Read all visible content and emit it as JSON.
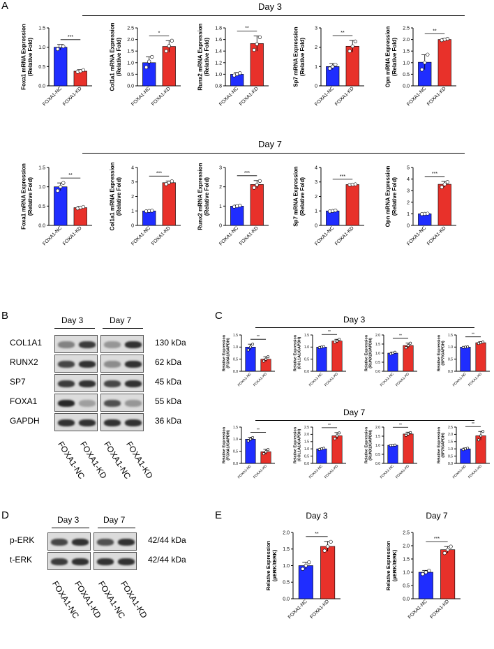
{
  "panel_letters": {
    "a": "A",
    "b": "B",
    "c": "C",
    "d": "D",
    "e": "E"
  },
  "colors": {
    "nc": "#1f2dff",
    "kd": "#e8312a",
    "axis": "#000000",
    "blot_bg": "#dcdcdc",
    "band": "#1e1e1e"
  },
  "groups": [
    "FOXA1-NC",
    "FOXA1-KD"
  ],
  "panel_a": {
    "day3_title": "Day 3",
    "day7_title": "Day 7",
    "relative_fold": "(Relative Fold)"
  },
  "panel_b": {
    "day3": "Day 3",
    "day7": "Day 7",
    "rows": [
      {
        "protein": "COL1A1",
        "size": "130 kDa"
      },
      {
        "protein": "RUNX2",
        "size": "62 kDa"
      },
      {
        "protein": "SP7",
        "size": "45 kDa"
      },
      {
        "protein": "FOXA1",
        "size": "55 kDa"
      },
      {
        "protein": "GAPDH",
        "size": "36 kDa"
      }
    ],
    "lanes": [
      "FOXA1-NC",
      "FOXA1-KD",
      "FOXA1-NC",
      "FOXA1-KD"
    ]
  },
  "panel_c": {
    "day3_title": "Day 3",
    "day7_title": "Day 7",
    "ylabel_top": "Relative Expression"
  },
  "panel_d": {
    "day3": "Day 3",
    "day7": "Day 7",
    "rows": [
      {
        "protein": "p-ERK",
        "size": "42/44 kDa"
      },
      {
        "protein": "t-ERK",
        "size": "42/44 kDa"
      }
    ],
    "lanes": [
      "FOXA1-NC",
      "FOXA1-KD",
      "FOXA1-NC",
      "FOXA1-KD"
    ]
  },
  "chart_data": [
    {
      "id": "a_d3_foxa1",
      "type": "bar",
      "panel": "A",
      "day": "Day 3",
      "ylabel": "Foxa1 mRNA Expression",
      "ylabel2": "(Relative Fold)",
      "categories": [
        "FOXA1-NC",
        "FOXA1-KD"
      ],
      "values": [
        1.0,
        0.38
      ],
      "errors": [
        0.07,
        0.04
      ],
      "points": [
        [
          0.95,
          1.03,
          1.02
        ],
        [
          0.36,
          0.38,
          0.41
        ]
      ],
      "ylim": [
        0,
        1.5
      ],
      "yticks": [
        0.0,
        0.5,
        1.0,
        1.5
      ],
      "ytick_labels": [
        "0.0",
        "0.5",
        "1.0",
        "1.5"
      ],
      "significance": "***"
    },
    {
      "id": "a_d3_col1a1",
      "type": "bar",
      "panel": "A",
      "day": "Day 3",
      "ylabel": "Col1a1 mRNA Expression",
      "ylabel2": "(Relative Fold)",
      "categories": [
        "FOXA1-NC",
        "FOXA1-KD"
      ],
      "values": [
        1.0,
        1.7
      ],
      "errors": [
        0.25,
        0.25
      ],
      "points": [
        [
          0.8,
          1.05,
          1.25
        ],
        [
          1.5,
          1.72,
          1.95
        ]
      ],
      "ylim": [
        0,
        2.5
      ],
      "yticks": [
        0.0,
        0.5,
        1.0,
        1.5,
        2.0,
        2.5
      ],
      "ytick_labels": [
        "0.0",
        "0.5",
        "1.0",
        "1.5",
        "2.0",
        "2.5"
      ],
      "significance": "*"
    },
    {
      "id": "a_d3_runx2",
      "type": "bar",
      "panel": "A",
      "day": "Day 3",
      "ylabel": "Runx2 mRNA Expression",
      "ylabel2": "(Relative Fold)",
      "categories": [
        "FOXA1-NC",
        "FOXA1-KD"
      ],
      "values": [
        1.0,
        1.53
      ],
      "errors": [
        0.03,
        0.13
      ],
      "points": [
        [
          0.98,
          1.0,
          1.02
        ],
        [
          1.42,
          1.52,
          1.64
        ]
      ],
      "ylim": [
        0.8,
        1.8
      ],
      "yticks": [
        0.8,
        1.0,
        1.2,
        1.4,
        1.6,
        1.8
      ],
      "ytick_labels": [
        "0.8",
        "1.0",
        "1.2",
        "1.4",
        "1.6",
        "1.8"
      ],
      "significance": "**"
    },
    {
      "id": "a_d3_sp7",
      "type": "bar",
      "panel": "A",
      "day": "Day 3",
      "ylabel": "Sp7 mRNA Expression",
      "ylabel2": "(Relative Fold)",
      "categories": [
        "FOXA1-NC",
        "FOXA1-KD"
      ],
      "values": [
        1.0,
        2.05
      ],
      "errors": [
        0.15,
        0.3
      ],
      "points": [
        [
          0.9,
          1.0,
          1.1
        ],
        [
          1.8,
          2.05,
          2.3
        ]
      ],
      "ylim": [
        0,
        3
      ],
      "yticks": [
        0,
        1,
        2,
        3
      ],
      "ytick_labels": [
        "0",
        "1",
        "2",
        "3"
      ],
      "significance": "**"
    },
    {
      "id": "a_d3_opn",
      "type": "bar",
      "panel": "A",
      "day": "Day 3",
      "ylabel": "Opn mRNA Expression",
      "ylabel2": "(Relative Fold)",
      "categories": [
        "FOXA1-NC",
        "FOXA1-KD"
      ],
      "values": [
        1.02,
        2.0
      ],
      "errors": [
        0.32,
        0.04
      ],
      "points": [
        [
          0.7,
          1.0,
          1.35
        ],
        [
          1.97,
          2.0,
          2.03
        ]
      ],
      "ylim": [
        0,
        2.5
      ],
      "yticks": [
        0.0,
        0.5,
        1.0,
        1.5,
        2.0,
        2.5
      ],
      "ytick_labels": [
        "0.0",
        "0.5",
        "1.0",
        "1.5",
        "2.0",
        "2.5"
      ],
      "significance": "**"
    },
    {
      "id": "a_d7_foxa1",
      "type": "bar",
      "panel": "A",
      "day": "Day 7",
      "ylabel": "Foxa1 mRNA Expression",
      "ylabel2": "(Relative Fold)",
      "categories": [
        "FOXA1-NC",
        "FOXA1-KD"
      ],
      "values": [
        1.0,
        0.46
      ],
      "errors": [
        0.1,
        0.03
      ],
      "points": [
        [
          0.9,
          1.0,
          1.1
        ],
        [
          0.44,
          0.46,
          0.48
        ]
      ],
      "ylim": [
        0,
        1.5
      ],
      "yticks": [
        0.0,
        0.5,
        1.0,
        1.5
      ],
      "ytick_labels": [
        "0.0",
        "0.5",
        "1.0",
        "1.5"
      ],
      "significance": "**"
    },
    {
      "id": "a_d7_col1a1",
      "type": "bar",
      "panel": "A",
      "day": "Day 7",
      "ylabel": "Col1a1 mRNA Expression",
      "ylabel2": "(Relative Fold)",
      "categories": [
        "FOXA1-NC",
        "FOXA1-KD"
      ],
      "values": [
        1.0,
        2.95
      ],
      "errors": [
        0.03,
        0.12
      ],
      "points": [
        [
          0.98,
          1.0,
          1.02
        ],
        [
          2.85,
          2.95,
          3.05
        ]
      ],
      "ylim": [
        0,
        4
      ],
      "yticks": [
        0,
        1,
        2,
        3,
        4
      ],
      "ytick_labels": [
        "0",
        "1",
        "2",
        "3",
        "4"
      ],
      "significance": "***"
    },
    {
      "id": "a_d7_runx2",
      "type": "bar",
      "panel": "A",
      "day": "Day 7",
      "ylabel": "Runx2 mRNA Expression",
      "ylabel2": "(Relative Fold)",
      "categories": [
        "FOXA1-NC",
        "FOXA1-KD"
      ],
      "values": [
        1.0,
        2.12
      ],
      "errors": [
        0.05,
        0.2
      ],
      "points": [
        [
          0.97,
          1.0,
          1.03
        ],
        [
          1.95,
          2.1,
          2.3
        ]
      ],
      "ylim": [
        0,
        3
      ],
      "yticks": [
        0,
        1,
        2,
        3
      ],
      "ytick_labels": [
        "0",
        "1",
        "2",
        "3"
      ],
      "significance": "***"
    },
    {
      "id": "a_d7_sp7",
      "type": "bar",
      "panel": "A",
      "day": "Day 7",
      "ylabel": "Sp7 mRNA Expression",
      "ylabel2": "(Relative Fold)",
      "categories": [
        "FOXA1-NC",
        "FOXA1-KD"
      ],
      "values": [
        1.0,
        2.82
      ],
      "errors": [
        0.04,
        0.03
      ],
      "points": [
        [
          0.97,
          1.0,
          1.03
        ],
        [
          2.8,
          2.82,
          2.84
        ]
      ],
      "ylim": [
        0,
        4
      ],
      "yticks": [
        0,
        1,
        2,
        3,
        4
      ],
      "ytick_labels": [
        "0",
        "1",
        "2",
        "3",
        "4"
      ],
      "significance": "***"
    },
    {
      "id": "a_d7_opn",
      "type": "bar",
      "panel": "A",
      "day": "Day 7",
      "ylabel": "Opn mRNA Expression",
      "ylabel2": "(Relative Fold)",
      "categories": [
        "FOXA1-NC",
        "FOXA1-KD"
      ],
      "values": [
        1.0,
        3.55
      ],
      "errors": [
        0.04,
        0.25
      ],
      "points": [
        [
          0.98,
          1.0,
          1.02
        ],
        [
          3.3,
          3.55,
          3.75
        ]
      ],
      "ylim": [
        0,
        5
      ],
      "yticks": [
        0,
        1,
        2,
        3,
        4,
        5
      ],
      "ytick_labels": [
        "0",
        "1",
        "2",
        "3",
        "4",
        "5"
      ],
      "significance": "***"
    },
    {
      "id": "c_d3_col1a1",
      "type": "bar",
      "panel": "C",
      "day": "Day 3",
      "ylabel": "Relative Expression",
      "ylabel2": "(FOXA1/GAPDH)",
      "categories": [
        "FOXA1-NC",
        "FOXA1-KD"
      ],
      "values": [
        1.0,
        0.5
      ],
      "errors": [
        0.12,
        0.1
      ],
      "points": [
        [
          0.88,
          1.0,
          1.12
        ],
        [
          0.42,
          0.5,
          0.6
        ]
      ],
      "ylim": [
        0,
        1.5
      ],
      "yticks": [
        0.0,
        0.5,
        1.0,
        1.5
      ],
      "ytick_labels": [
        "0.0",
        "0.5",
        "1.0",
        "1.5"
      ],
      "significance": "**"
    },
    {
      "id": "c_d3_col",
      "type": "bar",
      "panel": "C",
      "day": "Day 3",
      "ylabel": "Relative Expression",
      "ylabel2": "(COL1A1/GAPDH)",
      "categories": [
        "FOXA1-NC",
        "FOXA1-KD"
      ],
      "values": [
        1.0,
        1.25
      ],
      "errors": [
        0.03,
        0.07
      ],
      "points": [
        [
          0.98,
          1.0,
          1.02
        ],
        [
          1.2,
          1.25,
          1.32
        ]
      ],
      "ylim": [
        0,
        1.5
      ],
      "yticks": [
        0.0,
        0.5,
        1.0,
        1.5
      ],
      "ytick_labels": [
        "0.0",
        "0.5",
        "1.0",
        "1.5"
      ],
      "significance": "**"
    },
    {
      "id": "c_d3_runx2",
      "type": "bar",
      "panel": "C",
      "day": "Day 3",
      "ylabel": "Relative Expression",
      "ylabel2": "(RUNX2/GAPDH)",
      "categories": [
        "FOXA1-NC",
        "FOXA1-KD"
      ],
      "values": [
        1.0,
        1.42
      ],
      "errors": [
        0.06,
        0.13
      ],
      "points": [
        [
          0.95,
          1.0,
          1.05
        ],
        [
          1.3,
          1.42,
          1.55
        ]
      ],
      "ylim": [
        0,
        2.0
      ],
      "yticks": [
        0.0,
        0.5,
        1.0,
        1.5,
        2.0
      ],
      "ytick_labels": [
        "0.0",
        "0.5",
        "1.0",
        "1.5",
        "2.0"
      ],
      "significance": "**"
    },
    {
      "id": "c_d3_sp7",
      "type": "bar",
      "panel": "C",
      "day": "Day 3",
      "ylabel": "Relative Expression",
      "ylabel2": "(SP7/GAPDH)",
      "categories": [
        "FOXA1-NC",
        "FOXA1-KD"
      ],
      "values": [
        1.0,
        1.18
      ],
      "errors": [
        0.02,
        0.04
      ],
      "points": [
        [
          0.99,
          1.0,
          1.01
        ],
        [
          1.15,
          1.18,
          1.21
        ]
      ],
      "ylim": [
        0,
        1.5
      ],
      "yticks": [
        0.0,
        0.5,
        1.0,
        1.5
      ],
      "ytick_labels": [
        "0.0",
        "0.5",
        "1.0",
        "1.5"
      ],
      "significance": "**"
    },
    {
      "id": "c_d7_foxa1",
      "type": "bar",
      "panel": "C",
      "day": "Day 7",
      "ylabel": "Relative Expression",
      "ylabel2": "(FOXA1/GAPDH)",
      "categories": [
        "FOXA1-NC",
        "FOXA1-KD"
      ],
      "values": [
        1.0,
        0.48
      ],
      "errors": [
        0.08,
        0.1
      ],
      "points": [
        [
          0.93,
          1.0,
          1.07
        ],
        [
          0.4,
          0.48,
          0.57
        ]
      ],
      "ylim": [
        0,
        1.5
      ],
      "yticks": [
        0.0,
        0.5,
        1.0,
        1.5
      ],
      "ytick_labels": [
        "0.0",
        "0.5",
        "1.0",
        "1.5"
      ],
      "significance": "**"
    },
    {
      "id": "c_d7_col1a1",
      "type": "bar",
      "panel": "C",
      "day": "Day 7",
      "ylabel": "Relative Expression",
      "ylabel2": "(COL1A1/GAPDH)",
      "categories": [
        "FOXA1-NC",
        "FOXA1-KD"
      ],
      "values": [
        1.0,
        1.9
      ],
      "errors": [
        0.05,
        0.22
      ],
      "points": [
        [
          0.96,
          1.0,
          1.04
        ],
        [
          1.7,
          1.9,
          2.1
        ]
      ],
      "ylim": [
        0,
        2.5
      ],
      "yticks": [
        0.0,
        0.5,
        1.0,
        1.5,
        2.0,
        2.5
      ],
      "ytick_labels": [
        "0.0",
        "0.5",
        "1.0",
        "1.5",
        "2.0",
        "2.5"
      ],
      "significance": "**"
    },
    {
      "id": "c_d7_runx2",
      "type": "bar",
      "panel": "C",
      "day": "Day 7",
      "ylabel": "Relative Expression",
      "ylabel2": "(RUNX2/GAPDH)",
      "categories": [
        "FOXA1-NC",
        "FOXA1-KD"
      ],
      "values": [
        1.0,
        1.62
      ],
      "errors": [
        0.02,
        0.1
      ],
      "points": [
        [
          0.99,
          1.0,
          1.01
        ],
        [
          1.55,
          1.62,
          1.7
        ]
      ],
      "ylim": [
        0,
        2.0
      ],
      "yticks": [
        0.0,
        0.5,
        1.0,
        1.5,
        2.0
      ],
      "ytick_labels": [
        "0.0",
        "0.5",
        "1.0",
        "1.5",
        "2.0"
      ],
      "significance": "**"
    },
    {
      "id": "c_d7_sp7",
      "type": "bar",
      "panel": "C",
      "day": "Day 7",
      "ylabel": "Relative Expression",
      "ylabel2": "(SP7/GAPDH)",
      "categories": [
        "FOXA1-NC",
        "FOXA1-KD"
      ],
      "values": [
        1.0,
        1.9
      ],
      "errors": [
        0.06,
        0.3
      ],
      "points": [
        [
          0.95,
          1.0,
          1.05
        ],
        [
          1.62,
          1.9,
          2.2
        ]
      ],
      "ylim": [
        0,
        2.5
      ],
      "yticks": [
        0.0,
        0.5,
        1.0,
        1.5,
        2.0,
        2.5
      ],
      "ytick_labels": [
        "0.0",
        "0.5",
        "1.0",
        "1.5",
        "2.0",
        "2.5"
      ],
      "significance": "**"
    },
    {
      "id": "e_d3",
      "type": "bar",
      "panel": "E",
      "day": "Day 3",
      "title": "Day 3",
      "ylabel": "Relative Expression",
      "ylabel2": "(pERK/tERK)",
      "categories": [
        "FOXA1-NC",
        "FOXA1-KD"
      ],
      "values": [
        1.0,
        1.58
      ],
      "errors": [
        0.1,
        0.15
      ],
      "points": [
        [
          0.9,
          1.0,
          1.1
        ],
        [
          1.45,
          1.58,
          1.72
        ]
      ],
      "ylim": [
        0,
        2.0
      ],
      "yticks": [
        0.0,
        0.5,
        1.0,
        1.5,
        2.0
      ],
      "ytick_labels": [
        "0.0",
        "0.5",
        "1.0",
        "1.5",
        "2.0"
      ],
      "significance": "**"
    },
    {
      "id": "e_d7",
      "type": "bar",
      "panel": "E",
      "day": "Day 7",
      "title": "Day 7",
      "ylabel": "Relative Expression",
      "ylabel2": "(pERK/tERK)",
      "categories": [
        "FOXA1-NC",
        "FOXA1-KD"
      ],
      "values": [
        1.0,
        1.85
      ],
      "errors": [
        0.07,
        0.12
      ],
      "points": [
        [
          0.93,
          1.0,
          1.06
        ],
        [
          1.72,
          1.85,
          1.97
        ]
      ],
      "ylim": [
        0,
        2.5
      ],
      "yticks": [
        0.0,
        0.5,
        1.0,
        1.5,
        2.0,
        2.5
      ],
      "ytick_labels": [
        "0.0",
        "0.5",
        "1.0",
        "1.5",
        "2.0",
        "2.5"
      ],
      "significance": "***"
    }
  ]
}
